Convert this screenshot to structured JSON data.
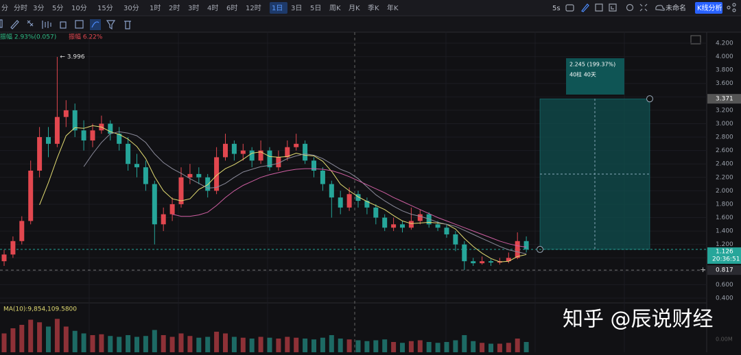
{
  "toolbar": {
    "intervals": [
      "分",
      "分时",
      "3分",
      "5分",
      "10分",
      "15分",
      "30分",
      "1时",
      "2时",
      "3时",
      "4时",
      "6时",
      "12时",
      "1日",
      "3日",
      "5日",
      "周K",
      "月K",
      "季K",
      "年K"
    ],
    "active": "1日",
    "refresh": "5s",
    "layout_name": "未命名",
    "analysis_button": "K线分析"
  },
  "chart_data": {
    "type": "candlestick",
    "info": [
      "振幅 2.93%(0.057)",
      "振幅 6.22%"
    ],
    "ohlc": [
      [
        0.95,
        1.12,
        0.88,
        1.05
      ],
      [
        1.05,
        1.32,
        1.0,
        1.25
      ],
      [
        1.25,
        1.62,
        1.2,
        1.55
      ],
      [
        1.55,
        2.45,
        1.5,
        2.3
      ],
      [
        2.3,
        2.95,
        2.2,
        2.8
      ],
      [
        2.8,
        2.95,
        2.5,
        2.7
      ],
      [
        2.7,
        3.996,
        2.65,
        3.1
      ],
      [
        3.1,
        3.35,
        2.95,
        3.2
      ],
      [
        3.2,
        3.3,
        2.8,
        2.9
      ],
      [
        2.9,
        3.05,
        2.6,
        2.75
      ],
      [
        2.75,
        3.0,
        2.65,
        2.9
      ],
      [
        2.9,
        3.12,
        2.85,
        3.0
      ],
      [
        3.0,
        3.05,
        2.75,
        2.85
      ],
      [
        2.85,
        2.95,
        2.6,
        2.7
      ],
      [
        2.7,
        2.8,
        2.3,
        2.4
      ],
      [
        2.4,
        2.55,
        2.2,
        2.35
      ],
      [
        2.35,
        2.45,
        2.0,
        2.1
      ],
      [
        2.1,
        2.15,
        1.2,
        1.5
      ],
      [
        1.5,
        1.75,
        1.4,
        1.65
      ],
      [
        1.65,
        1.9,
        1.55,
        1.8
      ],
      [
        1.8,
        2.35,
        1.75,
        2.2
      ],
      [
        2.2,
        2.4,
        2.1,
        2.25
      ],
      [
        2.25,
        2.35,
        2.1,
        2.2
      ],
      [
        2.2,
        2.25,
        1.9,
        2.0
      ],
      [
        2.0,
        2.65,
        1.95,
        2.5
      ],
      [
        2.5,
        2.85,
        2.45,
        2.7
      ],
      [
        2.7,
        2.75,
        2.45,
        2.55
      ],
      [
        2.55,
        2.7,
        2.45,
        2.6
      ],
      [
        2.6,
        2.65,
        2.35,
        2.45
      ],
      [
        2.45,
        2.75,
        2.4,
        2.6
      ],
      [
        2.6,
        2.65,
        2.3,
        2.35
      ],
      [
        2.35,
        2.6,
        2.3,
        2.5
      ],
      [
        2.5,
        2.75,
        2.45,
        2.65
      ],
      [
        2.65,
        2.85,
        2.6,
        2.7
      ],
      [
        2.7,
        2.75,
        2.4,
        2.45
      ],
      [
        2.45,
        2.5,
        2.2,
        2.3
      ],
      [
        2.3,
        2.35,
        2.0,
        2.1
      ],
      [
        2.1,
        2.15,
        1.6,
        1.9
      ],
      [
        1.9,
        2.0,
        1.65,
        1.75
      ],
      [
        1.75,
        2.05,
        1.7,
        1.95
      ],
      [
        1.95,
        2.0,
        1.75,
        1.85
      ],
      [
        1.85,
        1.9,
        1.65,
        1.75
      ],
      [
        1.75,
        1.8,
        1.5,
        1.6
      ],
      [
        1.6,
        1.65,
        1.4,
        1.45
      ],
      [
        1.45,
        1.6,
        1.4,
        1.5
      ],
      [
        1.5,
        1.55,
        1.38,
        1.45
      ],
      [
        1.45,
        1.75,
        1.42,
        1.55
      ],
      [
        1.55,
        1.72,
        1.5,
        1.65
      ],
      [
        1.65,
        1.68,
        1.45,
        1.5
      ],
      [
        1.5,
        1.55,
        1.4,
        1.45
      ],
      [
        1.45,
        1.5,
        1.3,
        1.35
      ],
      [
        1.35,
        1.4,
        1.1,
        1.2
      ],
      [
        1.2,
        1.25,
        0.817,
        0.95
      ],
      [
        0.95,
        1.0,
        0.88,
        0.92
      ],
      [
        0.92,
        1.02,
        0.9,
        0.95
      ],
      [
        0.95,
        0.98,
        0.88,
        0.93
      ],
      [
        0.93,
        1.0,
        0.9,
        0.95
      ],
      [
        0.95,
        1.08,
        0.92,
        1.0
      ],
      [
        1.0,
        1.38,
        0.98,
        1.25
      ],
      [
        1.25,
        1.32,
        1.08,
        1.126
      ]
    ],
    "up_color": "#e2474f",
    "down_color": "#26a69a",
    "ma": [
      {
        "color": "#e3dc72",
        "values": [
          null,
          null,
          null,
          null,
          1.79,
          2.12,
          2.49,
          2.82,
          2.94,
          2.93,
          2.97,
          2.95,
          2.88,
          2.84,
          2.77,
          2.66,
          2.48,
          2.21,
          2.0,
          1.88,
          1.85,
          1.88,
          2.02,
          2.09,
          2.23,
          2.33,
          2.39,
          2.47,
          2.56,
          2.58,
          2.51,
          2.5,
          2.51,
          2.56,
          2.53,
          2.52,
          2.44,
          2.29,
          2.1,
          2.0,
          1.91,
          1.84,
          1.78,
          1.72,
          1.63,
          1.55,
          1.51,
          1.52,
          1.53,
          1.52,
          1.5,
          1.43,
          1.29,
          1.17,
          1.07,
          0.99,
          0.94,
          0.95,
          1.02,
          1.05
        ]
      },
      {
        "color": "#8c8c9c",
        "values": [
          null,
          null,
          null,
          null,
          null,
          null,
          null,
          null,
          null,
          2.36,
          2.55,
          2.72,
          2.85,
          2.88,
          2.86,
          2.82,
          2.72,
          2.55,
          2.42,
          2.33,
          2.26,
          2.18,
          2.11,
          2.04,
          2.05,
          2.11,
          2.2,
          2.28,
          2.32,
          2.36,
          2.38,
          2.41,
          2.48,
          2.52,
          2.55,
          2.53,
          2.48,
          2.4,
          2.32,
          2.27,
          2.18,
          2.06,
          1.94,
          1.85,
          1.77,
          1.7,
          1.65,
          1.62,
          1.58,
          1.53,
          1.5,
          1.47,
          1.41,
          1.35,
          1.29,
          1.23,
          1.17,
          1.12,
          1.09,
          1.06
        ]
      },
      {
        "color": "#cf5fa2",
        "values": [
          null,
          null,
          null,
          null,
          null,
          null,
          null,
          null,
          null,
          null,
          null,
          null,
          null,
          null,
          null,
          null,
          null,
          null,
          null,
          1.65,
          1.62,
          1.62,
          1.64,
          1.68,
          1.78,
          1.9,
          2.0,
          2.08,
          2.14,
          2.2,
          2.24,
          2.27,
          2.3,
          2.32,
          2.33,
          2.33,
          2.32,
          2.3,
          2.26,
          2.21,
          2.15,
          2.09,
          2.03,
          1.97,
          1.9,
          1.84,
          1.78,
          1.72,
          1.66,
          1.6,
          1.55,
          1.5,
          1.45,
          1.4,
          1.35,
          1.3,
          1.25,
          1.21,
          1.18,
          1.16
        ]
      }
    ],
    "ylim": [
      0.4,
      4.2
    ],
    "yticks": [
      {
        "value": 4.2,
        "label": "4.200"
      },
      {
        "value": 4.0,
        "label": "4.000"
      },
      {
        "value": 3.8,
        "label": "3.800"
      },
      {
        "value": 3.6,
        "label": "3.600"
      },
      {
        "value": 3.4,
        "label": "3.400"
      },
      {
        "value": 3.2,
        "label": "3.200"
      },
      {
        "value": 3.0,
        "label": "3.000"
      },
      {
        "value": 2.8,
        "label": "2.800"
      },
      {
        "value": 2.6,
        "label": "2.600"
      },
      {
        "value": 2.4,
        "label": "2.400"
      },
      {
        "value": 2.2,
        "label": "2.200"
      },
      {
        "value": 2.0,
        "label": "2.000"
      },
      {
        "value": 1.8,
        "label": "1.800"
      },
      {
        "value": 1.6,
        "label": "1.600"
      },
      {
        "value": 1.4,
        "label": "1.400"
      },
      {
        "value": 1.2,
        "label": "1.200"
      },
      {
        "value": 1.0,
        "label": "1.000"
      },
      {
        "value": 0.8,
        "label": "0.800"
      },
      {
        "value": 0.6,
        "label": "0.600"
      },
      {
        "value": 0.4,
        "label": "0.400"
      }
    ],
    "high_annotation": {
      "value": 3.996,
      "label": "← 3.996"
    },
    "measure": {
      "from": 1.126,
      "to": 3.371,
      "label": "2.245 (199.37%)",
      "bars_label": "40柱 40天"
    },
    "measure_tag": 3.371,
    "last_price": 1.126,
    "countdown": "20:36:51",
    "crosshair_price": 0.817,
    "volume_label": "MA(10):9,854,109.5800",
    "volume_axis_label": "0.00M",
    "volume_ylim": [
      0,
      40
    ],
    "volume": [
      22,
      28,
      32,
      38,
      35,
      30,
      39,
      30,
      25,
      22,
      20,
      21,
      19,
      18,
      20,
      18,
      19,
      26,
      20,
      18,
      22,
      19,
      17,
      18,
      24,
      22,
      18,
      17,
      16,
      18,
      17,
      16,
      18,
      17,
      16,
      15,
      17,
      20,
      16,
      15,
      14,
      13,
      14,
      15,
      12,
      11,
      13,
      14,
      12,
      11,
      12,
      14,
      20,
      13,
      11,
      10,
      10,
      11,
      16,
      12
    ]
  },
  "watermark": "知乎 @辰说财经"
}
